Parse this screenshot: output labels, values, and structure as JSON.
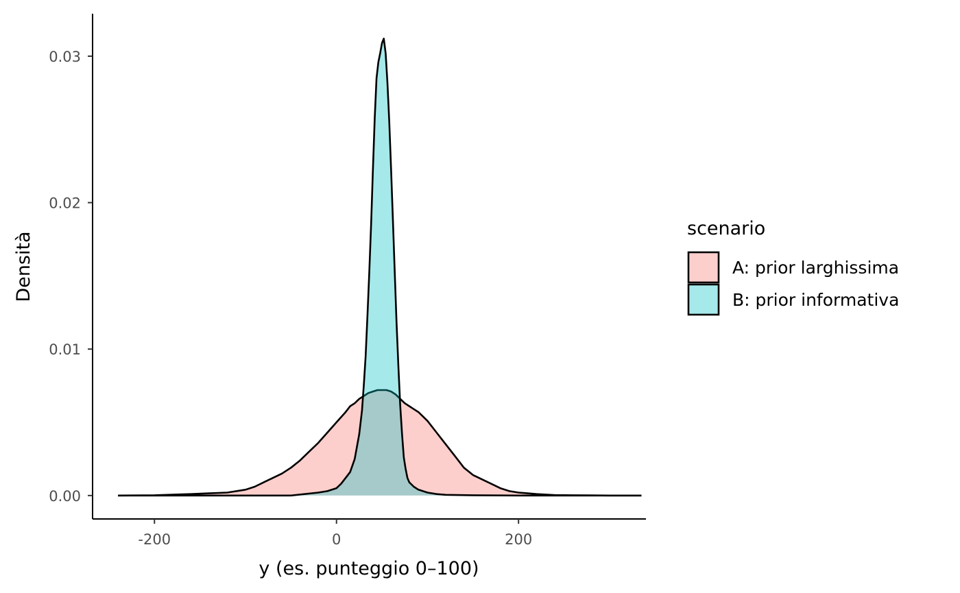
{
  "chart_data": {
    "type": "area",
    "xlabel": "y (es. punteggio 0–100)",
    "ylabel": "Densità",
    "xlim": [
      -268,
      340
    ],
    "ylim": [
      -0.0016,
      0.0329
    ],
    "x_ticks": [
      -200,
      0,
      200
    ],
    "x_tick_labels": [
      "-200",
      "0",
      "200"
    ],
    "y_ticks": [
      0.0,
      0.01,
      0.02,
      0.03
    ],
    "y_tick_labels": [
      "0.00",
      "0.01",
      "0.02",
      "0.03"
    ],
    "grid": false,
    "legend": {
      "title": "scenario",
      "position": "right"
    },
    "series": [
      {
        "name": "A: prior larghissima",
        "color": "#F8766D",
        "x": [
          -240,
          -200,
          -160,
          -140,
          -120,
          -100,
          -90,
          -80,
          -70,
          -60,
          -50,
          -40,
          -30,
          -20,
          -10,
          0,
          10,
          15,
          20,
          25,
          30,
          35,
          40,
          45,
          50,
          55,
          60,
          65,
          70,
          75,
          80,
          85,
          90,
          100,
          110,
          120,
          130,
          140,
          150,
          160,
          170,
          180,
          190,
          200,
          220,
          240,
          260,
          280,
          300,
          335
        ],
        "values": [
          0.0,
          2e-05,
          0.0001,
          0.00015,
          0.0002,
          0.0004,
          0.0006,
          0.0009,
          0.0012,
          0.0015,
          0.0019,
          0.0024,
          0.003,
          0.0036,
          0.0043,
          0.005,
          0.0057,
          0.0061,
          0.0063,
          0.0066,
          0.0068,
          0.007,
          0.0071,
          0.0072,
          0.0072,
          0.0072,
          0.0071,
          0.0069,
          0.0066,
          0.0063,
          0.0061,
          0.0059,
          0.0057,
          0.0051,
          0.0043,
          0.0035,
          0.0027,
          0.0019,
          0.0014,
          0.0011,
          0.0008,
          0.0005,
          0.0003,
          0.0002,
          0.0001,
          3e-05,
          2e-05,
          1e-05,
          0.0,
          0.0
        ]
      },
      {
        "name": "B: prior informativa",
        "color": "#00BFC4",
        "x": [
          -240,
          -50,
          -20,
          -10,
          0,
          5,
          10,
          15,
          20,
          25,
          28,
          30,
          32,
          34,
          36,
          38,
          40,
          42,
          44,
          46,
          48,
          50,
          52,
          54,
          56,
          58,
          60,
          62,
          64,
          66,
          68,
          70,
          72,
          74,
          76,
          78,
          80,
          85,
          90,
          95,
          100,
          110,
          120,
          150,
          200,
          335
        ],
        "values": [
          0.0,
          0.0,
          0.0002,
          0.0003,
          0.0005,
          0.0008,
          0.0012,
          0.0016,
          0.0025,
          0.0042,
          0.0058,
          0.0075,
          0.0095,
          0.0122,
          0.0152,
          0.0185,
          0.0222,
          0.0258,
          0.0285,
          0.0296,
          0.0302,
          0.0309,
          0.0312,
          0.0302,
          0.0282,
          0.0255,
          0.0222,
          0.0188,
          0.0152,
          0.0118,
          0.0088,
          0.0062,
          0.0042,
          0.0026,
          0.0018,
          0.0012,
          0.0009,
          0.0006,
          0.0004,
          0.0003,
          0.0002,
          0.0001,
          5e-05,
          2e-05,
          0.0,
          0.0
        ]
      }
    ]
  }
}
